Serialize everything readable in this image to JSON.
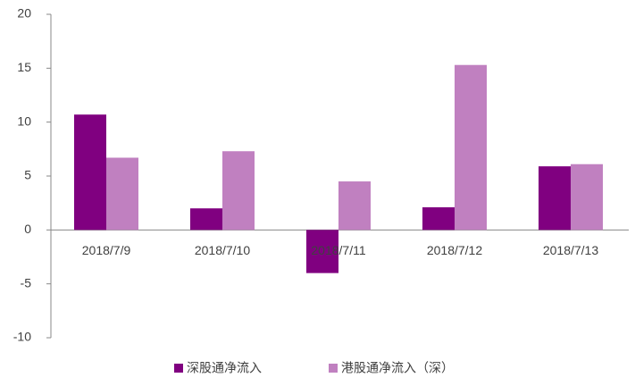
{
  "chart_data": {
    "type": "bar",
    "categories": [
      "2018/7/9",
      "2018/7/10",
      "2018/7/11",
      "2018/7/12",
      "2018/7/13"
    ],
    "series": [
      {
        "name": "深股通净流入",
        "color": "#800080",
        "values": [
          10.7,
          2.0,
          -4.0,
          2.1,
          5.9
        ]
      },
      {
        "name": "港股通净流入（深）",
        "color": "#c080c0",
        "values": [
          6.7,
          7.3,
          4.5,
          15.3,
          6.1
        ]
      }
    ],
    "ylim": [
      -10,
      20
    ],
    "yticks": [
      -10,
      -5,
      0,
      5,
      10,
      15,
      20
    ],
    "legend": "bottom"
  }
}
